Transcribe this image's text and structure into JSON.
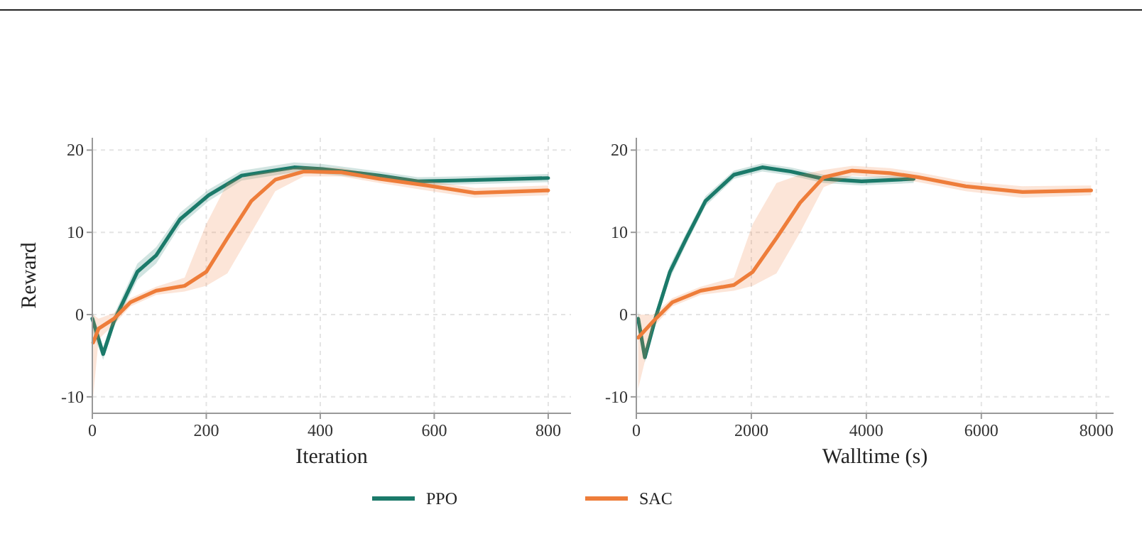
{
  "chart_data": [
    {
      "type": "line",
      "xlabel": "Iteration",
      "ylabel": "Reward",
      "xlim": [
        0,
        840
      ],
      "ylim": [
        -12,
        21.5
      ],
      "xticks": [
        0,
        200,
        400,
        600,
        800
      ],
      "yticks": [
        -10,
        0,
        10,
        20
      ],
      "grid": true,
      "legend": "bottom",
      "line_style": "solid",
      "marker": "none",
      "series": [
        {
          "name": "PPO",
          "color": "#1b7a6a",
          "x": [
            0,
            19,
            38,
            79,
            112,
            154,
            204,
            262,
            354,
            404,
            504,
            571,
            637,
            800
          ],
          "values": [
            -0.5,
            -4.8,
            -0.8,
            5.2,
            7.2,
            11.6,
            14.5,
            16.9,
            17.9,
            17.7,
            16.9,
            16.2,
            16.3,
            16.6
          ],
          "lower": [
            -2,
            -5.5,
            -1.5,
            4.2,
            6.2,
            10.8,
            13.8,
            16.3,
            17.3,
            17.1,
            16.4,
            15.7,
            15.8,
            16.1
          ],
          "upper": [
            0.5,
            -4,
            0,
            6.2,
            8.2,
            12.4,
            15.2,
            17.5,
            18.5,
            18.3,
            17.4,
            16.7,
            16.8,
            17.1
          ]
        },
        {
          "name": "SAC",
          "color": "#ee7d3a",
          "x": [
            1.5,
            11,
            38,
            67,
            112,
            162,
            200,
            237,
            279,
            321,
            371,
            437,
            504,
            587,
            671,
            800
          ],
          "values": [
            -3.4,
            -1.7,
            -0.5,
            1.5,
            2.9,
            3.5,
            5.2,
            9.3,
            13.8,
            16.4,
            17.4,
            17.3,
            16.5,
            15.7,
            14.8,
            15.1
          ],
          "lower": [
            -10,
            -3,
            -1.2,
            1,
            2.4,
            2.8,
            3.5,
            5,
            10,
            15,
            16.8,
            16.8,
            16,
            15.1,
            14.2,
            14.5
          ],
          "upper": [
            0,
            -0.5,
            0.2,
            2,
            3.4,
            4.5,
            11,
            16,
            17,
            17.5,
            18,
            17.8,
            17,
            16.3,
            15.4,
            15.7
          ]
        }
      ]
    },
    {
      "type": "line",
      "xlabel": "Walltime (s)",
      "xlim": [
        0,
        8300
      ],
      "ylim": [
        -12,
        21.5
      ],
      "xticks": [
        0,
        2000,
        4000,
        6000,
        8000
      ],
      "yticks": [
        -10,
        0,
        10,
        20
      ],
      "grid": true,
      "line_style": "solid",
      "marker": "none",
      "series": [
        {
          "color": "#1b7a6a",
          "x": [
            32,
            148,
            338,
            585,
            872,
            1202,
            1696,
            2190,
            2684,
            3259,
            3918,
            4823
          ],
          "values": [
            -0.5,
            -5.2,
            -0.3,
            5.2,
            9.3,
            13.8,
            17,
            17.9,
            17.4,
            16.5,
            16.2,
            16.5
          ],
          "lower": [
            -1.5,
            -5.8,
            -1,
            4.4,
            8.6,
            13.2,
            16.5,
            17.4,
            16.9,
            16,
            15.7,
            16
          ],
          "upper": [
            0.5,
            -4.6,
            0.4,
            6,
            10,
            14.4,
            17.5,
            18.4,
            17.9,
            17,
            16.7,
            17
          ]
        },
        {
          "color": "#ee7d3a",
          "x": [
            32,
            296,
            626,
            1119,
            1696,
            2025,
            2437,
            2848,
            3259,
            3753,
            4412,
            4906,
            5728,
            6716,
            7909
          ],
          "values": [
            -2.8,
            -0.8,
            1.5,
            2.9,
            3.6,
            5.2,
            9.3,
            13.6,
            16.7,
            17.5,
            17.2,
            16.7,
            15.6,
            14.9,
            15.1
          ],
          "lower": [
            -9,
            -1.5,
            1,
            2.4,
            2.9,
            3.5,
            5,
            10,
            15.5,
            16.9,
            16.6,
            16.1,
            15,
            14.2,
            14.5
          ],
          "upper": [
            0,
            0,
            2,
            3.4,
            4.5,
            11,
            16,
            17,
            17.6,
            18.1,
            17.8,
            17.3,
            16.2,
            15.6,
            15.7
          ]
        }
      ]
    }
  ]
}
